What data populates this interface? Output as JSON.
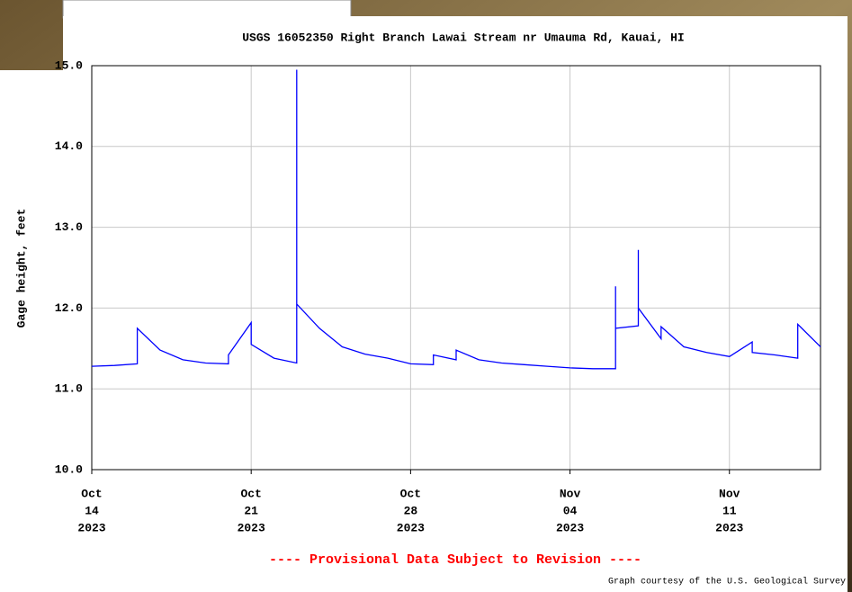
{
  "chart_data": {
    "type": "line",
    "title": "USGS 16052350 Right Branch Lawai Stream nr Umauma Rd, Kauai, HI",
    "ylabel": "Gage height, feet",
    "footer_note": "---- Provisional Data Subject to Revision ----",
    "credit": "Graph courtesy of the U.S. Geological Survey",
    "color": "#0000ff",
    "grid": true,
    "x": [
      "2023-10-14",
      "2023-10-15",
      "2023-10-16",
      "2023-10-16",
      "2023-10-17",
      "2023-10-18",
      "2023-10-19",
      "2023-10-20",
      "2023-10-20",
      "2023-10-21",
      "2023-10-21",
      "2023-10-22",
      "2023-10-23",
      "2023-10-23",
      "2023-10-23",
      "2023-10-23",
      "2023-10-23",
      "2023-10-23",
      "2023-10-23",
      "2023-10-23",
      "2023-10-24",
      "2023-10-25",
      "2023-10-26",
      "2023-10-27",
      "2023-10-28",
      "2023-10-29",
      "2023-10-29",
      "2023-10-30",
      "2023-10-30",
      "2023-10-31",
      "2023-11-01",
      "2023-11-02",
      "2023-11-03",
      "2023-11-04",
      "2023-11-05",
      "2023-11-06",
      "2023-11-06",
      "2023-11-06",
      "2023-11-06",
      "2023-11-07",
      "2023-11-07",
      "2023-11-07",
      "2023-11-08",
      "2023-11-08",
      "2023-11-09",
      "2023-11-10",
      "2023-11-11",
      "2023-11-12",
      "2023-11-12",
      "2023-11-13",
      "2023-11-14",
      "2023-11-14",
      "2023-11-15"
    ],
    "values": [
      11.28,
      11.29,
      11.31,
      11.75,
      11.48,
      11.36,
      11.32,
      11.31,
      11.42,
      11.82,
      11.55,
      11.38,
      11.32,
      13.9,
      14.95,
      12.3,
      12.85,
      12.1,
      12.45,
      12.05,
      11.75,
      11.52,
      11.43,
      11.38,
      11.31,
      11.3,
      11.42,
      11.36,
      11.48,
      11.36,
      11.32,
      11.3,
      11.28,
      11.26,
      11.25,
      11.25,
      12.0,
      12.27,
      11.75,
      11.78,
      12.72,
      12.0,
      11.62,
      11.77,
      11.52,
      11.45,
      11.4,
      11.58,
      11.45,
      11.42,
      11.38,
      11.8,
      11.52
    ],
    "xlim": [
      "2023-10-14",
      "2023-11-15"
    ],
    "xticks": [
      {
        "value": "2023-10-14",
        "label": [
          "Oct",
          "14",
          "2023"
        ]
      },
      {
        "value": "2023-10-21",
        "label": [
          "Oct",
          "21",
          "2023"
        ]
      },
      {
        "value": "2023-10-28",
        "label": [
          "Oct",
          "28",
          "2023"
        ]
      },
      {
        "value": "2023-11-04",
        "label": [
          "Nov",
          "04",
          "2023"
        ]
      },
      {
        "value": "2023-11-11",
        "label": [
          "Nov",
          "11",
          "2023"
        ]
      }
    ],
    "ylim": [
      10,
      15
    ],
    "yticks": [
      {
        "value": 10,
        "label": "10.0"
      },
      {
        "value": 11,
        "label": "11.0"
      },
      {
        "value": 12,
        "label": "12.0"
      },
      {
        "value": 13,
        "label": "13.0"
      },
      {
        "value": 14,
        "label": "14.0"
      },
      {
        "value": 15,
        "label": "15.0"
      }
    ]
  }
}
